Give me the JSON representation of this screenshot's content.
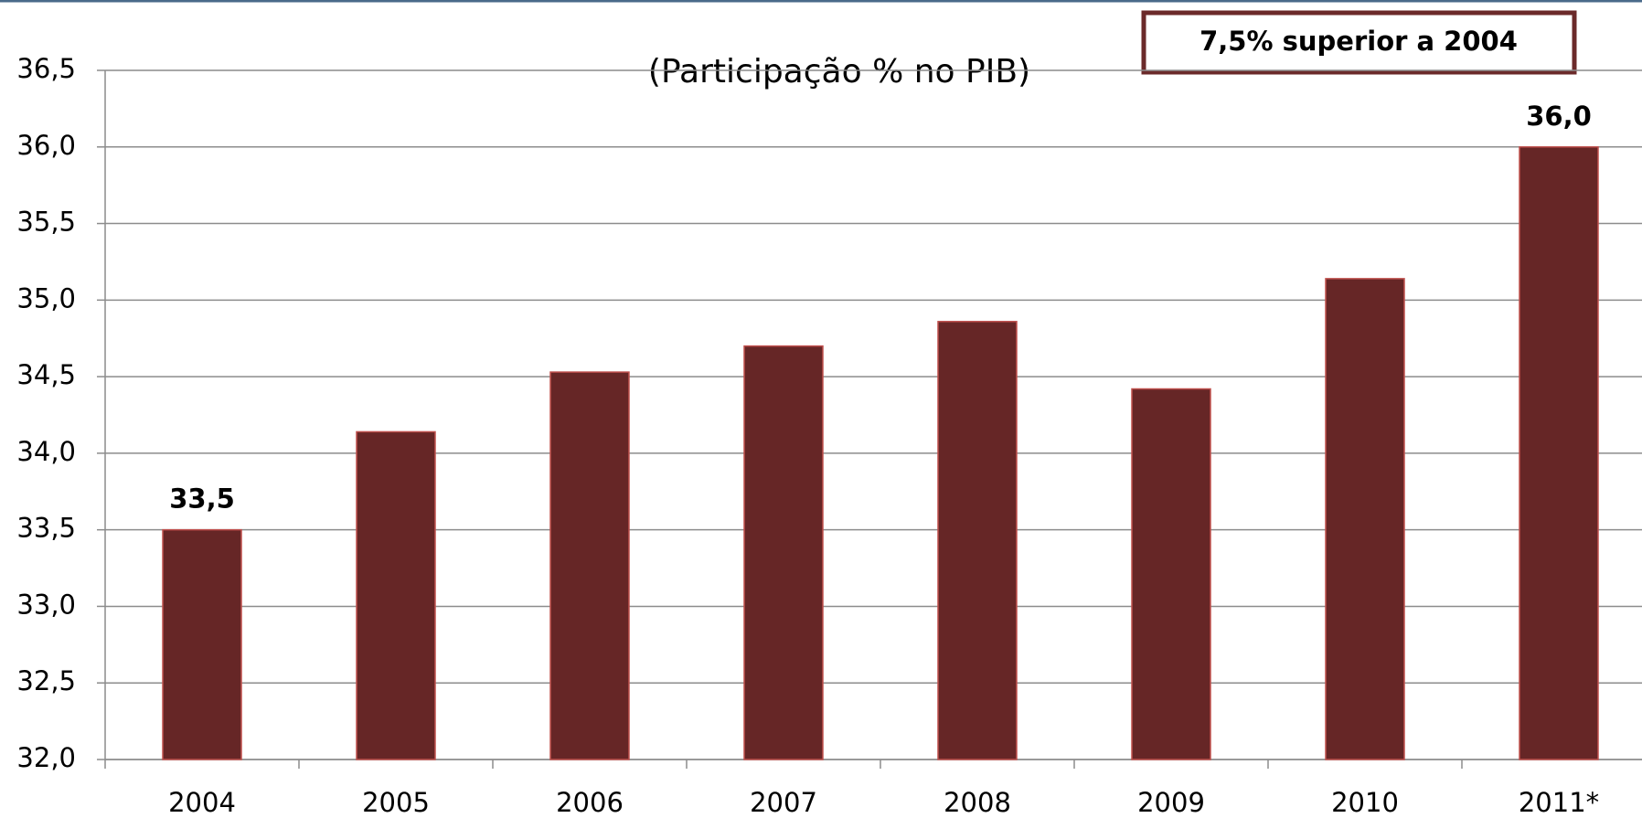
{
  "chart_data": {
    "type": "bar",
    "title": "(Participação % no PIB)",
    "annotation": "7,5% superior a 2004",
    "categories": [
      "2004",
      "2005",
      "2006",
      "2007",
      "2008",
      "2009",
      "2010",
      "2011*"
    ],
    "values": [
      33.5,
      34.14,
      34.53,
      34.7,
      34.86,
      34.42,
      35.14,
      36.0
    ],
    "value_labels": [
      "33,5",
      null,
      null,
      null,
      null,
      null,
      null,
      "36,0"
    ],
    "color": "#662626",
    "ylim": [
      32,
      36.5
    ],
    "yticks": [
      {
        "value": 32,
        "label": "32,0"
      },
      {
        "value": 32.5,
        "label": "32,5"
      },
      {
        "value": 33,
        "label": "33,0"
      },
      {
        "value": 33.5,
        "label": "33,5"
      },
      {
        "value": 34,
        "label": "34,0"
      },
      {
        "value": 34.5,
        "label": "34,5"
      },
      {
        "value": 35,
        "label": "35,0"
      },
      {
        "value": 35.5,
        "label": "35,5"
      },
      {
        "value": 36,
        "label": "36,0"
      },
      {
        "value": 36.5,
        "label": "36,5"
      }
    ],
    "grid": true
  }
}
